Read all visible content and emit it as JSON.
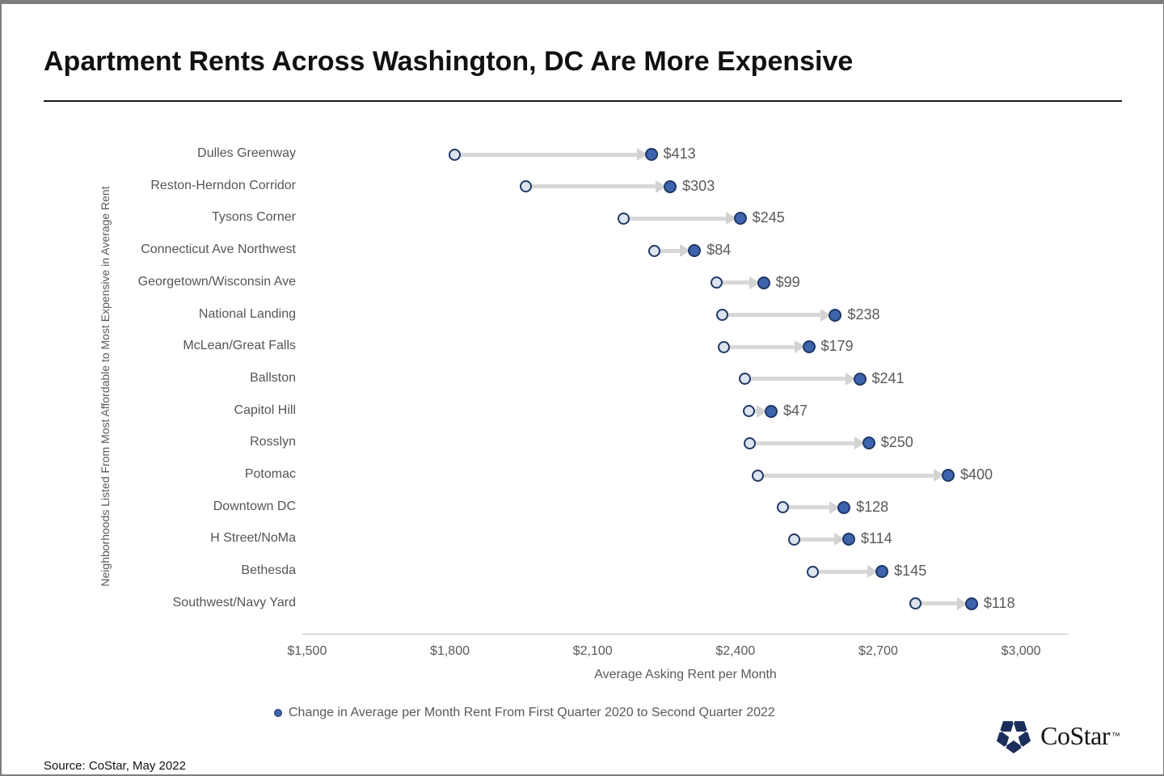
{
  "header": {
    "title": "Apartment Rents Across Washington, DC Are More Expensive"
  },
  "chart_data": {
    "type": "dumbbell",
    "title": "Apartment Rents Across Washington, DC Are More Expensive",
    "xlabel": "Average Asking Rent per Month",
    "ylabel": "Neighborhoods Listed From Most Affordable to Most Expensive in Average Rent",
    "legend": "Change in Average per Month Rent From First Quarter 2020 to Second Quarter 2022",
    "legend_position": "bottom",
    "categories": [
      "Dulles Greenway",
      "Reston-Herndon Corridor",
      "Tysons Corner",
      "Connecticut Ave Northwest",
      "Georgetown/Wisconsin Ave",
      "National Landing",
      "McLean/Great Falls",
      "Ballston",
      "Capitol Hill",
      "Rosslyn",
      "Potomac",
      "Downtown DC",
      "H Street/NoMa",
      "Bethesda",
      "Southwest/Navy Yard"
    ],
    "series": [
      {
        "name": "Average rent Q1 2020 (start, estimated from axis)",
        "values": [
          1810,
          1960,
          2165,
          2230,
          2360,
          2372,
          2375,
          2420,
          2428,
          2430,
          2447,
          2500,
          2524,
          2563,
          2778
        ]
      },
      {
        "name": "Average rent Q2 2022 (end = start + change)",
        "values": [
          2223,
          2263,
          2410,
          2314,
          2459,
          2610,
          2554,
          2661,
          2475,
          2680,
          2847,
          2628,
          2638,
          2708,
          2896
        ]
      }
    ],
    "change_values": [
      413,
      303,
      245,
      84,
      99,
      238,
      179,
      241,
      47,
      250,
      400,
      128,
      114,
      145,
      118
    ],
    "change_labels": [
      "$413",
      "$303",
      "$245",
      "$84",
      "$99",
      "$238",
      "$179",
      "$241",
      "$47",
      "$250",
      "$400",
      "$128",
      "$114",
      "$145",
      "$118"
    ],
    "x_ticks": [
      "$1,500",
      "$1,800",
      "$2,100",
      "$2,400",
      "$2,700",
      "$3,000"
    ],
    "x_tick_values": [
      1500,
      1800,
      2100,
      2400,
      2700,
      3000
    ],
    "axis_range": [
      1490,
      3100
    ],
    "grid": "off",
    "colors": {
      "start_marker_fill": "#dde4f0",
      "end_marker_fill": "#3d64ad",
      "marker_border": "#1f3864",
      "connector": "#d8d8d8",
      "label_text": "#595959",
      "axis_line": "#bfbfbf",
      "logo_navy": "#1b2d5b"
    }
  },
  "footer": {
    "source": "Source: CoStar, May 2022",
    "logo_text": "CoStar",
    "logo_tm": "™"
  }
}
